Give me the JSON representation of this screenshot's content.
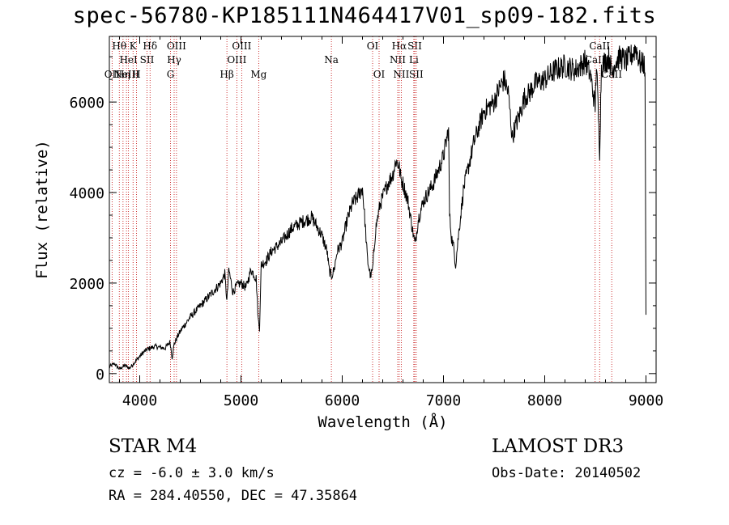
{
  "chart_data": {
    "type": "line",
    "title": "spec-56780-KP185111N464417V01_sp09-182.fits",
    "xlabel": "Wavelength (Å)",
    "ylabel": "Flux (relative)",
    "xlim": [
      3700,
      9100
    ],
    "ylim": [
      -200,
      7450
    ],
    "x_ticks": [
      4000,
      5000,
      6000,
      7000,
      8000,
      9000
    ],
    "y_ticks": [
      0,
      2000,
      4000,
      6000
    ],
    "series": [
      {
        "name": "flux",
        "x": [
          3700,
          3750,
          3800,
          3850,
          3900,
          3950,
          4000,
          4050,
          4100,
          4150,
          4200,
          4250,
          4300,
          4320,
          4340,
          4380,
          4420,
          4500,
          4600,
          4700,
          4800,
          4840,
          4861,
          4880,
          4920,
          4960,
          5000,
          5050,
          5100,
          5150,
          5170,
          5183,
          5200,
          5250,
          5300,
          5400,
          5500,
          5600,
          5700,
          5800,
          5850,
          5870,
          5893,
          5920,
          5950,
          6000,
          6050,
          6100,
          6150,
          6200,
          6220,
          6250,
          6280,
          6300,
          6330,
          6370,
          6400,
          6450,
          6500,
          6530,
          6560,
          6580,
          6600,
          6650,
          6700,
          6720,
          6750,
          6800,
          6900,
          7000,
          7050,
          7060,
          7080,
          7100,
          7120,
          7150,
          7200,
          7300,
          7400,
          7500,
          7550,
          7600,
          7640,
          7680,
          7700,
          7750,
          7800,
          7850,
          7900,
          8000,
          8100,
          8200,
          8300,
          8400,
          8450,
          8498,
          8510,
          8542,
          8560,
          8600,
          8640,
          8662,
          8680,
          8700,
          8750,
          8800,
          8850,
          8900,
          8950,
          8970,
          8990,
          9000
        ],
        "values": [
          150,
          220,
          100,
          180,
          120,
          250,
          380,
          500,
          560,
          600,
          580,
          560,
          700,
          350,
          650,
          850,
          1000,
          1250,
          1500,
          1750,
          2000,
          2200,
          1600,
          2300,
          1800,
          1950,
          2000,
          1900,
          2300,
          2100,
          1200,
          1000,
          2400,
          2500,
          2700,
          2900,
          3200,
          3350,
          3450,
          3050,
          2700,
          2300,
          2150,
          2300,
          2700,
          2900,
          3400,
          3750,
          3900,
          4100,
          3500,
          2500,
          2150,
          2300,
          3200,
          3700,
          3900,
          4200,
          4400,
          4700,
          4600,
          4300,
          4200,
          3800,
          3100,
          2850,
          3400,
          3800,
          4200,
          4800,
          5400,
          3500,
          3000,
          2800,
          2400,
          3100,
          4100,
          5100,
          5800,
          6000,
          6300,
          6500,
          6200,
          5200,
          5400,
          5700,
          6100,
          6200,
          6400,
          6500,
          6700,
          6800,
          6700,
          6900,
          6600,
          5900,
          6900,
          4900,
          6800,
          6900,
          7000,
          6600,
          6800,
          6900,
          7000,
          6900,
          7000,
          7200,
          6800,
          6900,
          6700,
          1300
        ]
      }
    ],
    "line_markers": [
      {
        "x": 3727,
        "label": "OII",
        "row": 2
      },
      {
        "x": 3798,
        "label": "Hθ",
        "row": 0
      },
      {
        "x": 3835,
        "label": "Hη",
        "row": 2
      },
      {
        "x": 3869,
        "label": "NeIII",
        "row": 2
      },
      {
        "x": 3889,
        "label": "HeI",
        "row": 1
      },
      {
        "x": 3934,
        "label": "K",
        "row": 0
      },
      {
        "x": 3968,
        "label": "H",
        "row": 2
      },
      {
        "x": 4072,
        "label": "SII",
        "row": 1
      },
      {
        "x": 4102,
        "label": "Hδ",
        "row": 0
      },
      {
        "x": 4304,
        "label": "G",
        "row": 2
      },
      {
        "x": 4340,
        "label": "Hγ",
        "row": 1
      },
      {
        "x": 4363,
        "label": "OIII",
        "row": 0
      },
      {
        "x": 4861,
        "label": "Hβ",
        "row": 2
      },
      {
        "x": 4959,
        "label": "OIII",
        "row": 1
      },
      {
        "x": 5007,
        "label": "OIII",
        "row": 0
      },
      {
        "x": 5175,
        "label": "Mg",
        "row": 2
      },
      {
        "x": 5893,
        "label": "Na",
        "row": 1
      },
      {
        "x": 6300,
        "label": "OI",
        "row": 0
      },
      {
        "x": 6364,
        "label": "OI",
        "row": 2
      },
      {
        "x": 6548,
        "label": "NII",
        "row": 1
      },
      {
        "x": 6563,
        "label": "Hα",
        "row": 0
      },
      {
        "x": 6583,
        "label": "NII",
        "row": 2
      },
      {
        "x": 6707,
        "label": "Li",
        "row": 1
      },
      {
        "x": 6716,
        "label": "SII",
        "row": 0
      },
      {
        "x": 6731,
        "label": "SII",
        "row": 2
      },
      {
        "x": 8498,
        "label": "CaII",
        "row": 1
      },
      {
        "x": 8542,
        "label": "CaII",
        "row": 0
      },
      {
        "x": 8662,
        "label": "CaII",
        "row": 2
      }
    ]
  },
  "info": {
    "class_line": "STAR    M4",
    "cz": "cz = -6.0 ± 3.0 km/s",
    "radec": "RA = 284.40550, DEC =  47.35864",
    "survey": "LAMOST DR3",
    "obs_date": "Obs-Date: 20140502"
  }
}
